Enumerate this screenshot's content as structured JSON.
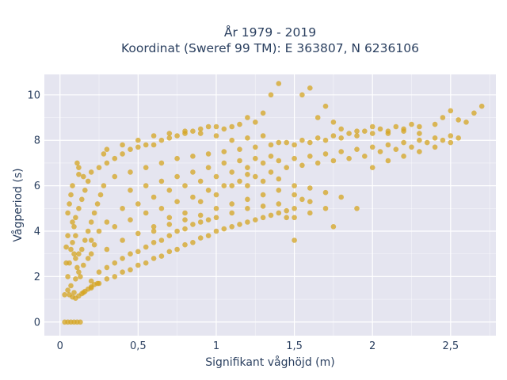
{
  "chart_data": {
    "type": "scatter",
    "title_line1": "År 1979 - 2019",
    "title_line2": "Koordinat (Sweref 99 TM): E 363807, N 6236106",
    "xlabel": "Signifikant våghöjd (m)",
    "ylabel": "Vågperiod (s)",
    "xlim": [
      -0.1,
      2.79
    ],
    "ylim": [
      -0.6,
      10.9
    ],
    "x_ticks": [
      0,
      0.5,
      1,
      1.5,
      2,
      2.5
    ],
    "x_tick_labels": [
      "0",
      "0,5",
      "1",
      "1,5",
      "2",
      "2,5"
    ],
    "y_ticks": [
      0,
      2,
      4,
      6,
      8,
      10
    ],
    "y_tick_labels": [
      "0",
      "2",
      "4",
      "6",
      "8",
      "10"
    ],
    "grid": true,
    "legend": "none",
    "marker_color": "#d4a421",
    "plot_background": "#e5e5f0",
    "points": [
      [
        0.03,
        0
      ],
      [
        0.05,
        0
      ],
      [
        0.07,
        0
      ],
      [
        0.09,
        0
      ],
      [
        0.11,
        0
      ],
      [
        0.13,
        0
      ],
      [
        0.03,
        1.2
      ],
      [
        0.05,
        1.4
      ],
      [
        0.07,
        1.6
      ],
      [
        0.09,
        1.3
      ],
      [
        0.1,
        1.9
      ],
      [
        0.12,
        2.2
      ],
      [
        0.15,
        2.5
      ],
      [
        0.18,
        2.8
      ],
      [
        0.2,
        3.0
      ],
      [
        0.22,
        3.4
      ],
      [
        0.05,
        2.0
      ],
      [
        0.06,
        2.6
      ],
      [
        0.07,
        3.2
      ],
      [
        0.08,
        3.5
      ],
      [
        0.05,
        3.8
      ],
      [
        0.09,
        4.2
      ],
      [
        0.1,
        4.6
      ],
      [
        0.12,
        5.0
      ],
      [
        0.14,
        5.4
      ],
      [
        0.16,
        5.8
      ],
      [
        0.08,
        6.0
      ],
      [
        0.12,
        6.5
      ],
      [
        0.15,
        6.4
      ],
      [
        0.11,
        7.0
      ],
      [
        0.12,
        6.8
      ],
      [
        0.18,
        6.2
      ],
      [
        0.2,
        6.6
      ],
      [
        0.25,
        6.8
      ],
      [
        0.3,
        7.0
      ],
      [
        0.35,
        7.2
      ],
      [
        0.28,
        7.4
      ],
      [
        0.4,
        7.4
      ],
      [
        0.45,
        7.6
      ],
      [
        0.5,
        7.7
      ],
      [
        0.55,
        7.8
      ],
      [
        0.6,
        7.8
      ],
      [
        0.65,
        8.0
      ],
      [
        0.7,
        8.1
      ],
      [
        0.75,
        8.2
      ],
      [
        0.8,
        8.3
      ],
      [
        0.85,
        8.4
      ],
      [
        0.9,
        8.5
      ],
      [
        0.95,
        8.6
      ],
      [
        1.0,
        8.6
      ],
      [
        1.05,
        8.5
      ],
      [
        1.1,
        8.6
      ],
      [
        1.15,
        8.7
      ],
      [
        1.2,
        9.0
      ],
      [
        1.25,
        8.8
      ],
      [
        1.3,
        9.2
      ],
      [
        1.35,
        10.0
      ],
      [
        1.4,
        10.5
      ],
      [
        1.55,
        10.0
      ],
      [
        1.6,
        10.3
      ],
      [
        1.7,
        9.5
      ],
      [
        1.65,
        9.0
      ],
      [
        1.75,
        8.8
      ],
      [
        1.8,
        8.5
      ],
      [
        1.9,
        8.4
      ],
      [
        2.0,
        8.6
      ],
      [
        2.1,
        8.3
      ],
      [
        2.2,
        8.4
      ],
      [
        2.3,
        8.6
      ],
      [
        2.4,
        8.7
      ],
      [
        2.45,
        9.0
      ],
      [
        2.5,
        9.3
      ],
      [
        2.55,
        8.9
      ],
      [
        2.6,
        8.8
      ],
      [
        2.65,
        9.2
      ],
      [
        2.7,
        9.5
      ],
      [
        0.2,
        1.8
      ],
      [
        0.25,
        2.2
      ],
      [
        0.3,
        2.4
      ],
      [
        0.35,
        2.6
      ],
      [
        0.4,
        2.8
      ],
      [
        0.45,
        3.0
      ],
      [
        0.5,
        3.1
      ],
      [
        0.55,
        3.3
      ],
      [
        0.6,
        3.5
      ],
      [
        0.65,
        3.6
      ],
      [
        0.7,
        3.8
      ],
      [
        0.75,
        4.0
      ],
      [
        0.8,
        4.1
      ],
      [
        0.85,
        4.3
      ],
      [
        0.9,
        4.4
      ],
      [
        0.95,
        4.5
      ],
      [
        1.0,
        4.6
      ],
      [
        1.1,
        4.8
      ],
      [
        1.2,
        5.0
      ],
      [
        1.3,
        5.1
      ],
      [
        1.4,
        5.2
      ],
      [
        1.5,
        5.0
      ],
      [
        1.45,
        4.6
      ],
      [
        1.55,
        5.4
      ],
      [
        1.6,
        5.3
      ],
      [
        1.5,
        6.0
      ],
      [
        1.7,
        5.7
      ],
      [
        1.8,
        5.5
      ],
      [
        1.9,
        5.0
      ],
      [
        1.2,
        6.0
      ],
      [
        0.3,
        4.4
      ],
      [
        0.4,
        5.0
      ],
      [
        0.5,
        5.2
      ],
      [
        0.6,
        5.5
      ],
      [
        0.7,
        5.8
      ],
      [
        0.8,
        6.0
      ],
      [
        0.9,
        6.2
      ],
      [
        1.0,
        6.4
      ],
      [
        1.1,
        6.6
      ],
      [
        1.2,
        6.8
      ],
      [
        1.3,
        7.0
      ],
      [
        1.4,
        7.1
      ],
      [
        1.5,
        7.2
      ],
      [
        1.6,
        7.3
      ],
      [
        1.7,
        7.4
      ],
      [
        1.8,
        7.5
      ],
      [
        1.9,
        7.6
      ],
      [
        2.0,
        7.7
      ],
      [
        2.1,
        7.8
      ],
      [
        2.2,
        7.9
      ],
      [
        2.3,
        8.0
      ],
      [
        2.4,
        8.1
      ],
      [
        2.5,
        8.2
      ],
      [
        1.85,
        7.2
      ],
      [
        1.95,
        7.3
      ],
      [
        2.05,
        7.5
      ],
      [
        2.15,
        7.6
      ],
      [
        2.25,
        7.7
      ],
      [
        2.35,
        7.9
      ],
      [
        2.45,
        8.0
      ],
      [
        0.2,
        3.6
      ],
      [
        0.25,
        4.0
      ],
      [
        0.35,
        4.2
      ],
      [
        0.45,
        4.5
      ],
      [
        0.55,
        4.8
      ],
      [
        0.65,
        5.0
      ],
      [
        0.75,
        5.3
      ],
      [
        0.85,
        5.5
      ],
      [
        0.95,
        5.8
      ],
      [
        1.05,
        6.0
      ],
      [
        1.15,
        6.2
      ],
      [
        1.25,
        6.4
      ],
      [
        1.35,
        6.6
      ],
      [
        1.45,
        6.8
      ],
      [
        1.55,
        6.9
      ],
      [
        1.65,
        7.0
      ],
      [
        1.75,
        7.1
      ],
      [
        0.6,
        4.2
      ],
      [
        0.7,
        4.6
      ],
      [
        0.8,
        4.8
      ],
      [
        0.15,
        1.3
      ],
      [
        0.2,
        1.5
      ],
      [
        0.25,
        1.7
      ],
      [
        0.3,
        1.9
      ],
      [
        0.35,
        2.0
      ],
      [
        0.4,
        2.2
      ],
      [
        0.45,
        2.3
      ],
      [
        0.5,
        2.5
      ],
      [
        0.55,
        2.6
      ],
      [
        0.6,
        2.8
      ],
      [
        0.65,
        2.9
      ],
      [
        0.7,
        3.1
      ],
      [
        0.75,
        3.2
      ],
      [
        0.8,
        3.4
      ],
      [
        0.85,
        3.5
      ],
      [
        0.9,
        3.7
      ],
      [
        0.95,
        3.8
      ],
      [
        1.0,
        4.0
      ],
      [
        1.05,
        4.1
      ],
      [
        1.1,
        4.2
      ],
      [
        1.15,
        4.3
      ],
      [
        1.2,
        4.4
      ],
      [
        1.25,
        4.5
      ],
      [
        1.3,
        4.6
      ],
      [
        1.35,
        4.7
      ],
      [
        1.4,
        4.8
      ],
      [
        1.45,
        4.9
      ],
      [
        1.5,
        4.6
      ],
      [
        1.5,
        3.6
      ],
      [
        0.3,
        7.6
      ],
      [
        0.4,
        7.8
      ],
      [
        0.5,
        8.0
      ],
      [
        0.6,
        8.2
      ],
      [
        0.7,
        8.3
      ],
      [
        0.8,
        8.4
      ],
      [
        0.9,
        8.3
      ],
      [
        1.0,
        8.2
      ],
      [
        1.1,
        8.0
      ],
      [
        1.2,
        8.1
      ],
      [
        1.3,
        8.2
      ],
      [
        1.4,
        7.9
      ],
      [
        1.5,
        7.8
      ],
      [
        1.6,
        7.9
      ],
      [
        1.7,
        8.0
      ],
      [
        1.8,
        8.1
      ],
      [
        1.9,
        8.2
      ],
      [
        2.0,
        8.3
      ],
      [
        2.1,
        8.4
      ],
      [
        2.2,
        8.5
      ],
      [
        2.3,
        8.3
      ],
      [
        2.0,
        6.8
      ],
      [
        2.1,
        7.1
      ],
      [
        2.2,
        7.3
      ],
      [
        2.3,
        7.5
      ],
      [
        2.4,
        7.7
      ],
      [
        2.5,
        7.9
      ],
      [
        2.55,
        8.1
      ],
      [
        1.7,
        5.0
      ],
      [
        1.6,
        4.8
      ],
      [
        1.75,
        4.2
      ],
      [
        0.1,
        2.8
      ],
      [
        0.12,
        3.0
      ],
      [
        0.14,
        3.2
      ],
      [
        0.16,
        3.6
      ],
      [
        0.18,
        4.0
      ],
      [
        0.2,
        4.4
      ],
      [
        0.22,
        4.8
      ],
      [
        0.24,
        5.2
      ],
      [
        0.26,
        5.6
      ],
      [
        0.28,
        6.0
      ],
      [
        0.06,
        1.2
      ],
      [
        0.08,
        1.1
      ],
      [
        0.1,
        1.05
      ],
      [
        0.12,
        1.15
      ],
      [
        0.14,
        1.25
      ],
      [
        0.16,
        1.35
      ],
      [
        0.18,
        1.45
      ],
      [
        0.2,
        1.55
      ],
      [
        0.22,
        1.65
      ],
      [
        0.24,
        1.7
      ],
      [
        0.05,
        4.8
      ],
      [
        0.06,
        5.2
      ],
      [
        0.07,
        5.6
      ],
      [
        0.08,
        4.4
      ],
      [
        0.09,
        3.0
      ],
      [
        0.1,
        3.8
      ],
      [
        0.11,
        2.4
      ],
      [
        0.13,
        2.0
      ],
      [
        0.04,
        2.6
      ],
      [
        0.04,
        3.3
      ],
      [
        0.35,
        6.4
      ],
      [
        0.45,
        6.6
      ],
      [
        0.55,
        6.8
      ],
      [
        0.65,
        7.0
      ],
      [
        0.75,
        7.2
      ],
      [
        0.85,
        7.3
      ],
      [
        0.95,
        7.4
      ],
      [
        1.05,
        7.5
      ],
      [
        1.15,
        7.6
      ],
      [
        1.25,
        7.7
      ],
      [
        1.35,
        7.8
      ],
      [
        1.45,
        7.9
      ],
      [
        1.55,
        8.0
      ],
      [
        1.65,
        8.1
      ],
      [
        1.75,
        8.2
      ],
      [
        1.85,
        8.3
      ],
      [
        1.95,
        8.4
      ],
      [
        2.05,
        8.5
      ],
      [
        2.15,
        8.6
      ],
      [
        2.25,
        8.7
      ],
      [
        0.45,
        5.8
      ],
      [
        0.55,
        6.0
      ],
      [
        0.65,
        6.2
      ],
      [
        0.75,
        6.4
      ],
      [
        0.85,
        6.6
      ],
      [
        0.95,
        6.8
      ],
      [
        1.05,
        7.0
      ],
      [
        1.15,
        7.1
      ],
      [
        1.25,
        7.2
      ],
      [
        1.35,
        7.3
      ],
      [
        0.3,
        3.2
      ],
      [
        0.4,
        3.6
      ],
      [
        0.5,
        3.9
      ],
      [
        0.6,
        4.0
      ],
      [
        0.7,
        4.3
      ],
      [
        0.8,
        4.5
      ],
      [
        0.9,
        4.7
      ],
      [
        1.0,
        5.0
      ],
      [
        1.1,
        5.2
      ],
      [
        1.2,
        5.4
      ],
      [
        1.3,
        5.6
      ],
      [
        1.4,
        5.8
      ],
      [
        1.5,
        5.6
      ],
      [
        1.6,
        5.9
      ],
      [
        1.4,
        6.3
      ],
      [
        1.3,
        6.2
      ],
      [
        1.2,
        6.5
      ],
      [
        1.1,
        6.0
      ],
      [
        1.0,
        5.6
      ],
      [
        0.9,
        5.3
      ]
    ]
  }
}
